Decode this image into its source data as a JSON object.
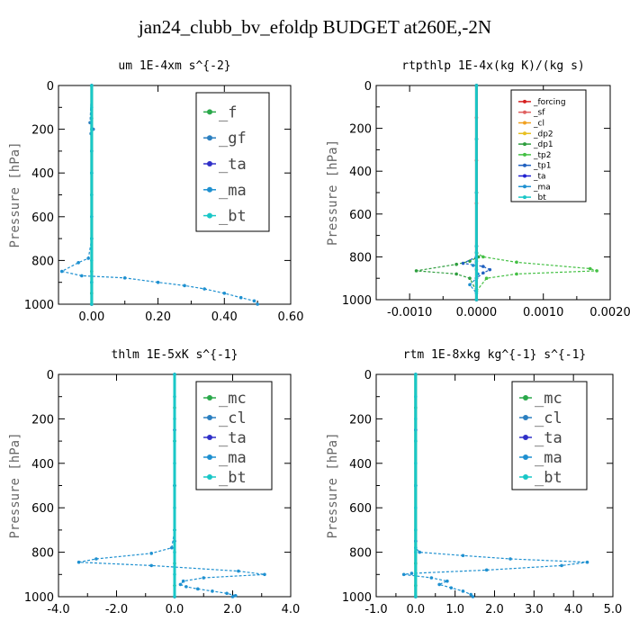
{
  "title": "jan24_clubb_bv_efoldp  BUDGET at260E,-2N",
  "chart_data": [
    {
      "type": "line",
      "title": "um  1E-4xm s^{-2}",
      "ylabel": "Pressure [hPa]",
      "xlim": [
        -0.1,
        0.6
      ],
      "ylim": [
        1000,
        0
      ],
      "xticks": [
        {
          "v": 0.0,
          "label": "0.00"
        },
        {
          "v": 0.2,
          "label": "0.20"
        },
        {
          "v": 0.4,
          "label": "0.40"
        },
        {
          "v": 0.6,
          "label": "0.60"
        }
      ],
      "yticks": [
        {
          "v": 0,
          "label": "0"
        },
        {
          "v": 200,
          "label": "200"
        },
        {
          "v": 400,
          "label": "400"
        },
        {
          "v": 600,
          "label": "600"
        },
        {
          "v": 800,
          "label": "800"
        },
        {
          "v": 1000,
          "label": "1000"
        }
      ],
      "legend_style": "large",
      "series": [
        {
          "name": "_f",
          "color": "#2aa84a",
          "x": [
            0,
            0,
            0,
            0,
            0,
            0,
            0,
            0
          ],
          "y": [
            0,
            150,
            300,
            500,
            700,
            850,
            950,
            1000
          ]
        },
        {
          "name": "_gf",
          "color": "#2b7fc0",
          "x": [
            0,
            -0.005,
            0.005,
            -0.002,
            0,
            0,
            0
          ],
          "y": [
            0,
            170,
            200,
            220,
            400,
            700,
            1000
          ]
        },
        {
          "name": "_ta",
          "color": "#3030c8",
          "x": [
            0,
            0,
            0,
            0,
            0
          ],
          "y": [
            0,
            300,
            600,
            900,
            1000
          ]
        },
        {
          "name": "_ma",
          "color": "#1e90d0",
          "x": [
            0,
            0,
            0,
            -0.01,
            -0.04,
            -0.09,
            -0.03,
            0.1,
            0.2,
            0.28,
            0.34,
            0.4,
            0.45,
            0.49,
            0.5
          ],
          "y": [
            0,
            400,
            700,
            790,
            810,
            850,
            870,
            880,
            900,
            915,
            930,
            950,
            970,
            985,
            1000
          ]
        },
        {
          "name": "_bt",
          "color": "#19c7c7",
          "x": [
            0,
            0,
            0,
            0,
            0,
            0,
            0,
            0,
            0,
            0,
            0
          ],
          "y": [
            0,
            100,
            200,
            300,
            400,
            500,
            600,
            700,
            800,
            900,
            1000
          ]
        }
      ]
    },
    {
      "type": "line",
      "title": "rtpthlp  1E-4x(kg K)/(kg s)",
      "ylabel": "Pressure [hPa]",
      "xlim": [
        -0.0015,
        0.002
      ],
      "ylim": [
        1000,
        0
      ],
      "xticks": [
        {
          "v": -0.001,
          "label": "-0.0010"
        },
        {
          "v": 0.0,
          "label": "0.0000"
        },
        {
          "v": 0.001,
          "label": "0.0010"
        },
        {
          "v": 0.002,
          "label": "0.0020"
        }
      ],
      "yticks": [
        {
          "v": 0,
          "label": "0"
        },
        {
          "v": 200,
          "label": "200"
        },
        {
          "v": 400,
          "label": "400"
        },
        {
          "v": 600,
          "label": "600"
        },
        {
          "v": 800,
          "label": "800"
        },
        {
          "v": 1000,
          "label": "1000"
        }
      ],
      "legend_style": "small",
      "series": [
        {
          "name": "_forcing",
          "color": "#d62020",
          "x": [
            0,
            0,
            0,
            0,
            0,
            0,
            0
          ],
          "y": [
            0,
            150,
            350,
            550,
            750,
            900,
            1000
          ]
        },
        {
          "name": "_sf",
          "color": "#e06060",
          "x": [
            0,
            0,
            0,
            0,
            0
          ],
          "y": [
            0,
            250,
            500,
            750,
            1000
          ]
        },
        {
          "name": "_cl",
          "color": "#f0a020",
          "x": [
            0,
            0,
            0,
            0,
            0
          ],
          "y": [
            0,
            250,
            500,
            750,
            1000
          ]
        },
        {
          "name": "_dp2",
          "color": "#e8c020",
          "x": [
            0,
            0,
            0,
            0,
            0
          ],
          "y": [
            0,
            250,
            500,
            750,
            1000
          ]
        },
        {
          "name": "_dp1",
          "color": "#2e9e3e",
          "x": [
            0,
            0,
            3e-05,
            -0.0001,
            -0.0003,
            -0.0009,
            -0.0003,
            -0.0001,
            0,
            0
          ],
          "y": [
            0,
            780,
            800,
            820,
            835,
            865,
            880,
            900,
            960,
            1000
          ]
        },
        {
          "name": "_tp2",
          "color": "#44c044",
          "x": [
            0,
            0,
            0.0001,
            0.0006,
            0.0017,
            0.0018,
            0.0006,
            0.00015,
            0,
            0
          ],
          "y": [
            0,
            780,
            800,
            825,
            855,
            865,
            880,
            900,
            960,
            1000
          ]
        },
        {
          "name": "_tp1",
          "color": "#2060c0",
          "x": [
            0,
            0,
            -0.0002,
            0.0001,
            0.0002,
            0.0001,
            0,
            0
          ],
          "y": [
            0,
            800,
            830,
            845,
            860,
            875,
            900,
            1000
          ]
        },
        {
          "name": "_ta",
          "color": "#2020d0",
          "x": [
            0,
            0,
            0,
            0,
            0
          ],
          "y": [
            0,
            250,
            500,
            750,
            1000
          ]
        },
        {
          "name": "_ma",
          "color": "#1e90d0",
          "x": [
            0,
            0,
            0,
            -5e-05,
            0,
            2e-05,
            0,
            -0.0001,
            0,
            0
          ],
          "y": [
            0,
            780,
            820,
            840,
            860,
            880,
            900,
            930,
            970,
            1000
          ]
        },
        {
          "name": "_bt",
          "color": "#19c7c7",
          "x": [
            0,
            0,
            0,
            0,
            0
          ],
          "y": [
            0,
            250,
            500,
            750,
            1000
          ]
        }
      ]
    },
    {
      "type": "line",
      "title": "thlm  1E-5xK s^{-1}",
      "ylabel": "Pressure [hPa]",
      "xlim": [
        -4.0,
        4.0
      ],
      "ylim": [
        1000,
        0
      ],
      "xticks": [
        {
          "v": -4.0,
          "label": "-4.0"
        },
        {
          "v": -2.0,
          "label": "-2.0"
        },
        {
          "v": 0.0,
          "label": "0.0"
        },
        {
          "v": 2.0,
          "label": "2.0"
        },
        {
          "v": 4.0,
          "label": "4.0"
        }
      ],
      "yticks": [
        {
          "v": 0,
          "label": "0"
        },
        {
          "v": 200,
          "label": "200"
        },
        {
          "v": 400,
          "label": "400"
        },
        {
          "v": 600,
          "label": "600"
        },
        {
          "v": 800,
          "label": "800"
        },
        {
          "v": 1000,
          "label": "1000"
        }
      ],
      "legend_style": "large",
      "series": [
        {
          "name": "_mc",
          "color": "#2aa84a",
          "x": [
            0,
            0,
            0,
            0,
            0,
            0,
            0,
            0
          ],
          "y": [
            0,
            150,
            300,
            500,
            700,
            850,
            950,
            1000
          ]
        },
        {
          "name": "_cl",
          "color": "#2b7fc0",
          "x": [
            0,
            0,
            0,
            0,
            0
          ],
          "y": [
            0,
            250,
            500,
            750,
            1000
          ]
        },
        {
          "name": "_ta",
          "color": "#3030c8",
          "x": [
            0,
            0,
            0,
            0,
            0
          ],
          "y": [
            0,
            250,
            500,
            750,
            1000
          ]
        },
        {
          "name": "_ma",
          "color": "#1e90d0",
          "x": [
            0,
            0,
            -0.1,
            -0.8,
            -2.7,
            -3.3,
            -0.8,
            2.2,
            3.1,
            1.0,
            0.3,
            0.2,
            0.4,
            0.8,
            1.3,
            1.8,
            2.1,
            2.0
          ],
          "y": [
            0,
            700,
            780,
            805,
            830,
            845,
            860,
            885,
            900,
            915,
            930,
            945,
            955,
            965,
            975,
            985,
            995,
            1000
          ]
        },
        {
          "name": "_bt",
          "color": "#19c7c7",
          "x": [
            0,
            0,
            0,
            0,
            0,
            0,
            0,
            0,
            0,
            0,
            0
          ],
          "y": [
            0,
            100,
            200,
            300,
            400,
            500,
            600,
            700,
            800,
            900,
            1000
          ]
        }
      ]
    },
    {
      "type": "line",
      "title": "rtm  1E-8xkg kg^{-1} s^{-1}",
      "ylabel": "Pressure [hPa]",
      "xlim": [
        -1.0,
        5.0
      ],
      "ylim": [
        1000,
        0
      ],
      "xticks": [
        {
          "v": -1.0,
          "label": "-1.0"
        },
        {
          "v": 0.0,
          "label": "0.0"
        },
        {
          "v": 1.0,
          "label": "1.0"
        },
        {
          "v": 2.0,
          "label": "2.0"
        },
        {
          "v": 3.0,
          "label": "3.0"
        },
        {
          "v": 4.0,
          "label": "4.0"
        },
        {
          "v": 5.0,
          "label": "5.0"
        }
      ],
      "yticks": [
        {
          "v": 0,
          "label": "0"
        },
        {
          "v": 200,
          "label": "200"
        },
        {
          "v": 400,
          "label": "400"
        },
        {
          "v": 600,
          "label": "600"
        },
        {
          "v": 800,
          "label": "800"
        },
        {
          "v": 1000,
          "label": "1000"
        }
      ],
      "legend_style": "large",
      "series": [
        {
          "name": "_mc",
          "color": "#2aa84a",
          "x": [
            0,
            0,
            0,
            0,
            0,
            0,
            0,
            0
          ],
          "y": [
            0,
            150,
            300,
            500,
            700,
            850,
            950,
            1000
          ]
        },
        {
          "name": "_cl",
          "color": "#2b7fc0",
          "x": [
            0,
            0,
            0,
            0,
            0
          ],
          "y": [
            0,
            250,
            500,
            750,
            1000
          ]
        },
        {
          "name": "_ta",
          "color": "#3030c8",
          "x": [
            0,
            0,
            0,
            0,
            0
          ],
          "y": [
            0,
            250,
            500,
            750,
            1000
          ]
        },
        {
          "name": "_ma",
          "color": "#1e90d0",
          "x": [
            0,
            0,
            0.1,
            1.2,
            2.4,
            4.35,
            3.7,
            1.8,
            -0.1,
            -0.3,
            0.4,
            0.8,
            0.6,
            0.9,
            1.2,
            1.4,
            1.45
          ],
          "y": [
            0,
            780,
            800,
            815,
            830,
            845,
            860,
            880,
            895,
            900,
            915,
            930,
            945,
            960,
            975,
            990,
            1000
          ]
        },
        {
          "name": "_bt",
          "color": "#19c7c7",
          "x": [
            0,
            0,
            0,
            0,
            0,
            0,
            0,
            0,
            0,
            0,
            0
          ],
          "y": [
            0,
            100,
            200,
            300,
            400,
            500,
            600,
            700,
            800,
            900,
            1000
          ]
        }
      ]
    }
  ]
}
